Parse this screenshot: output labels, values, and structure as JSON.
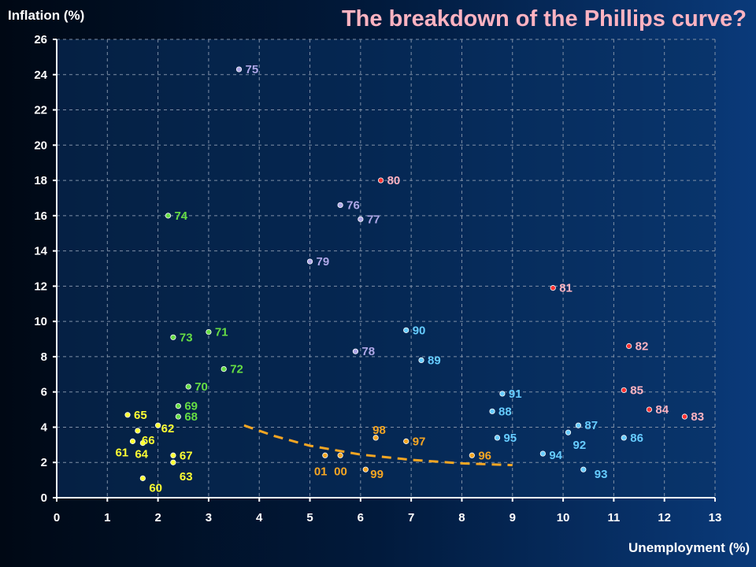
{
  "chart_data": {
    "type": "scatter",
    "title": "The breakdown of the Phillips curve?",
    "xlabel": "Unemployment (%)",
    "ylabel": "Inflation (%)",
    "xlim": [
      0,
      13
    ],
    "ylim": [
      0,
      26
    ],
    "xticks": [
      0,
      1,
      2,
      3,
      4,
      5,
      6,
      7,
      8,
      9,
      10,
      11,
      12,
      13
    ],
    "yticks": [
      0,
      2,
      4,
      6,
      8,
      10,
      12,
      14,
      16,
      18,
      20,
      22,
      24,
      26
    ],
    "grid": "dashed",
    "colors": {
      "plot_bg": "#0a3366",
      "axis": "#ffffff",
      "grid": "#7f8fa6",
      "trend": "#f5a623",
      "title": "#ffb3c1"
    },
    "series": [
      {
        "color": "#ffff33",
        "points": [
          {
            "label": "60",
            "x": 1.7,
            "y": 1.1
          },
          {
            "label": "61",
            "x": 1.5,
            "y": 3.2
          },
          {
            "label": "62",
            "x": 2.0,
            "y": 4.1
          },
          {
            "label": "63",
            "x": 2.3,
            "y": 2.0
          },
          {
            "label": "64",
            "x": 1.7,
            "y": 3.1
          },
          {
            "label": "65",
            "x": 1.4,
            "y": 4.7
          },
          {
            "label": "66",
            "x": 1.6,
            "y": 3.8
          },
          {
            "label": "67",
            "x": 2.3,
            "y": 2.4
          }
        ]
      },
      {
        "color": "#66dd44",
        "points": [
          {
            "label": "68",
            "x": 2.4,
            "y": 4.6
          },
          {
            "label": "69",
            "x": 2.4,
            "y": 5.2
          },
          {
            "label": "70",
            "x": 2.6,
            "y": 6.3
          },
          {
            "label": "71",
            "x": 3.0,
            "y": 9.4
          },
          {
            "label": "72",
            "x": 3.3,
            "y": 7.3
          },
          {
            "label": "73",
            "x": 2.3,
            "y": 9.1
          },
          {
            "label": "74",
            "x": 2.2,
            "y": 16.0
          }
        ]
      },
      {
        "color": "#b0a8e8",
        "points": [
          {
            "label": "75",
            "x": 3.6,
            "y": 24.3
          },
          {
            "label": "76",
            "x": 5.6,
            "y": 16.6
          },
          {
            "label": "77",
            "x": 6.0,
            "y": 15.8
          },
          {
            "label": "78",
            "x": 5.9,
            "y": 8.3
          },
          {
            "label": "79",
            "x": 5.0,
            "y": 13.4
          }
        ]
      },
      {
        "color": "#ff3333",
        "labelColor": "#ffb3c1",
        "points": [
          {
            "label": "80",
            "x": 6.4,
            "y": 18.0
          },
          {
            "label": "81",
            "x": 9.8,
            "y": 11.9
          },
          {
            "label": "82",
            "x": 11.3,
            "y": 8.6
          },
          {
            "label": "83",
            "x": 12.4,
            "y": 4.6
          },
          {
            "label": "84",
            "x": 11.7,
            "y": 5.0
          },
          {
            "label": "85",
            "x": 11.2,
            "y": 6.1
          }
        ]
      },
      {
        "color": "#66ccff",
        "points": [
          {
            "label": "86",
            "x": 11.2,
            "y": 3.4
          },
          {
            "label": "87",
            "x": 10.3,
            "y": 4.1
          },
          {
            "label": "88",
            "x": 8.6,
            "y": 4.9
          },
          {
            "label": "89",
            "x": 7.2,
            "y": 7.8
          },
          {
            "label": "90",
            "x": 6.9,
            "y": 9.5
          },
          {
            "label": "91",
            "x": 8.8,
            "y": 5.9
          },
          {
            "label": "92",
            "x": 10.1,
            "y": 3.7
          },
          {
            "label": "93",
            "x": 10.4,
            "y": 1.6
          },
          {
            "label": "94",
            "x": 9.6,
            "y": 2.5
          },
          {
            "label": "95",
            "x": 8.7,
            "y": 3.4
          }
        ]
      },
      {
        "color": "#f5a623",
        "points": [
          {
            "label": "96",
            "x": 8.2,
            "y": 2.4
          },
          {
            "label": "97",
            "x": 6.9,
            "y": 3.2
          },
          {
            "label": "98",
            "x": 6.3,
            "y": 3.4
          },
          {
            "label": "99",
            "x": 6.1,
            "y": 1.6
          },
          {
            "label": "00",
            "x": 5.6,
            "y": 2.4
          },
          {
            "label": "01",
            "x": 5.3,
            "y": 2.4
          }
        ]
      }
    ],
    "trendline": [
      {
        "x": 3.7,
        "y": 4.1
      },
      {
        "x": 4.3,
        "y": 3.5
      },
      {
        "x": 5.0,
        "y": 2.95
      },
      {
        "x": 6.0,
        "y": 2.45
      },
      {
        "x": 7.0,
        "y": 2.15
      },
      {
        "x": 8.0,
        "y": 1.95
      },
      {
        "x": 9.0,
        "y": 1.85
      }
    ]
  }
}
